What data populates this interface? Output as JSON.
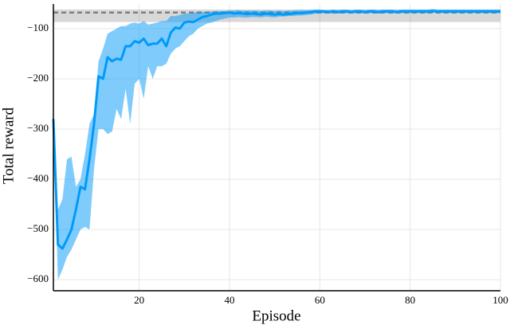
{
  "chart_data": {
    "type": "line",
    "xlabel": "Episode",
    "ylabel": "Total reward",
    "xlim": [
      1,
      100
    ],
    "ylim": [
      -622,
      -51
    ],
    "xticks": [
      20,
      40,
      60,
      80,
      100
    ],
    "yticks": [
      {
        "value": -600,
        "label": "−600"
      },
      {
        "value": -500,
        "label": "−500"
      },
      {
        "value": -400,
        "label": "−400"
      },
      {
        "value": -300,
        "label": "−300"
      },
      {
        "value": -200,
        "label": "−200"
      },
      {
        "value": -100,
        "label": "−100"
      }
    ],
    "grid": true,
    "hline": {
      "value": -68,
      "band": [
        -87,
        -62
      ],
      "color": "#7f7f7f"
    },
    "x": [
      1,
      2,
      3,
      4,
      5,
      6,
      7,
      8,
      9,
      10,
      11,
      12,
      13,
      14,
      15,
      16,
      17,
      18,
      19,
      20,
      21,
      22,
      23,
      24,
      25,
      26,
      27,
      28,
      29,
      30,
      31,
      32,
      33,
      34,
      35,
      36,
      37,
      38,
      39,
      40,
      41,
      42,
      43,
      44,
      45,
      46,
      47,
      48,
      49,
      50,
      51,
      52,
      53,
      54,
      55,
      56,
      57,
      58,
      59,
      60,
      61,
      62,
      63,
      64,
      65,
      66,
      67,
      68,
      69,
      70,
      71,
      72,
      73,
      74,
      75,
      76,
      77,
      78,
      79,
      80,
      81,
      82,
      83,
      84,
      85,
      86,
      87,
      88,
      89,
      90,
      91,
      92,
      93,
      94,
      95,
      96,
      97,
      98,
      99,
      100
    ],
    "series": [
      {
        "color": "#009af9",
        "values": [
          -280,
          -530,
          -538,
          -520,
          -500,
          -460,
          -415,
          -420,
          -360,
          -290,
          -195,
          -200,
          -157,
          -165,
          -160,
          -162,
          -135,
          -135,
          -125,
          -128,
          -120,
          -133,
          -130,
          -130,
          -120,
          -135,
          -108,
          -98,
          -100,
          -88,
          -86,
          -87,
          -82,
          -77,
          -75,
          -72,
          -70,
          -70,
          -69,
          -68,
          -70,
          -69,
          -70,
          -71,
          -70,
          -71,
          -72,
          -70,
          -71,
          -72,
          -71,
          -72,
          -71,
          -70,
          -69,
          -69,
          -68,
          -67,
          -66,
          -66,
          -66,
          -67,
          -66,
          -67,
          -66,
          -66,
          -67,
          -66,
          -66,
          -67,
          -66,
          -66,
          -67,
          -66,
          -66,
          -66,
          -67,
          -66,
          -66,
          -66,
          -66,
          -66,
          -66,
          -66,
          -65,
          -66,
          -66,
          -66,
          -66,
          -66,
          -66,
          -66,
          -66,
          -66,
          -66,
          -66,
          -66,
          -66,
          -66,
          -66
        ],
        "lower": [
          -290,
          -600,
          -580,
          -555,
          -540,
          -520,
          -500,
          -495,
          -500,
          -380,
          -300,
          -300,
          -310,
          -305,
          -260,
          -280,
          -220,
          -290,
          -210,
          -200,
          -240,
          -175,
          -200,
          -175,
          -175,
          -170,
          -150,
          -140,
          -135,
          -125,
          -115,
          -110,
          -100,
          -95,
          -90,
          -88,
          -85,
          -82,
          -80,
          -78,
          -78,
          -77,
          -78,
          -78,
          -77,
          -77,
          -78,
          -76,
          -77,
          -78,
          -76,
          -76,
          -75,
          -75,
          -74,
          -74,
          -73,
          -72,
          -70,
          -70,
          -69,
          -70,
          -69,
          -70,
          -69,
          -69,
          -70,
          -69,
          -69,
          -70,
          -69,
          -69,
          -70,
          -69,
          -69,
          -69,
          -70,
          -69,
          -69,
          -69,
          -69,
          -69,
          -69,
          -69,
          -68,
          -69,
          -69,
          -69,
          -69,
          -69,
          -69,
          -69,
          -69,
          -69,
          -69,
          -69,
          -69,
          -69,
          -69,
          -69
        ],
        "upper": [
          -270,
          -460,
          -440,
          -360,
          -355,
          -415,
          -400,
          -350,
          -290,
          -270,
          -165,
          -140,
          -110,
          -105,
          -100,
          -95,
          -95,
          -90,
          -88,
          -90,
          -85,
          -92,
          -90,
          -88,
          -85,
          -85,
          -75,
          -75,
          -73,
          -70,
          -70,
          -68,
          -67,
          -67,
          -66,
          -66,
          -65,
          -65,
          -65,
          -64,
          -64,
          -63,
          -64,
          -64,
          -64,
          -64,
          -65,
          -64,
          -64,
          -65,
          -64,
          -65,
          -64,
          -64,
          -63,
          -63,
          -63,
          -63,
          -62,
          -62,
          -63,
          -63,
          -62,
          -63,
          -62,
          -62,
          -63,
          -62,
          -62,
          -63,
          -62,
          -62,
          -63,
          -62,
          -62,
          -62,
          -63,
          -62,
          -62,
          -62,
          -62,
          -62,
          -62,
          -62,
          -61,
          -62,
          -62,
          -62,
          -62,
          -62,
          -62,
          -62,
          -62,
          -62,
          -62,
          -62,
          -62,
          -62,
          -62,
          -62
        ]
      }
    ]
  }
}
